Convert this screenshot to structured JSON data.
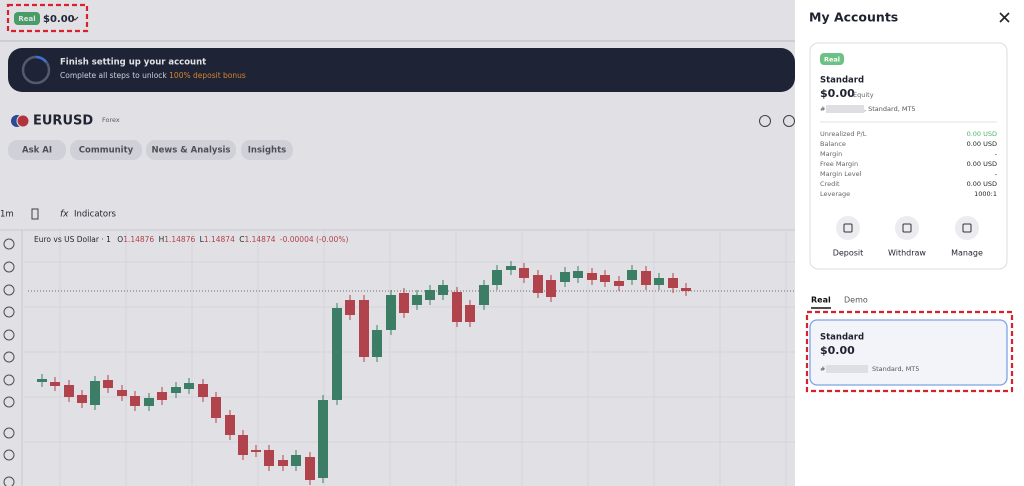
{
  "top_bar": {
    "account_type": "Real",
    "balance": "$0.00"
  },
  "banner": {
    "title": "Finish setting up your account",
    "text": "Complete all steps to unlock",
    "highlight": "100% deposit bonus"
  },
  "instrument": {
    "symbol": "EURUSD",
    "market": "Forex"
  },
  "tabs": [
    "Ask AI",
    "Community",
    "News & Analysis",
    "Insights"
  ],
  "toolbar": {
    "interval": "1m",
    "indicators": "Indicators"
  },
  "chart_legend": {
    "name": "Euro vs US Dollar · 1",
    "open_label": "O",
    "open": "1.14876",
    "high_label": "H",
    "high": "1.14876",
    "low_label": "L",
    "low": "1.14874",
    "close_label": "C",
    "close": "1.14874",
    "change": "-0.00004 (-0.00%)"
  },
  "panel": {
    "title": "My Accounts",
    "account_card": {
      "badge": "Real",
      "name": "Standard",
      "equity": "$0.00",
      "equity_label": "Equity",
      "number_prefix": "#",
      "details": ", Standard, MT5",
      "rows": [
        [
          "Unrealized P/L",
          "0.00 USD"
        ],
        [
          "Balance",
          "0.00 USD"
        ],
        [
          "Margin",
          "-"
        ],
        [
          "Free Margin",
          "0.00 USD"
        ],
        [
          "Margin Level",
          "-"
        ],
        [
          "Credit",
          "0.00 USD"
        ],
        [
          "Leverage",
          "1000:1"
        ]
      ],
      "actions": [
        "Deposit",
        "Withdraw",
        "Manage"
      ]
    },
    "account_tabs": [
      "Real",
      "Demo"
    ],
    "account_list": [
      {
        "name": "Standard",
        "balance": "$0.00",
        "number_prefix": "#",
        "details": "Standard, MT5"
      }
    ]
  }
}
